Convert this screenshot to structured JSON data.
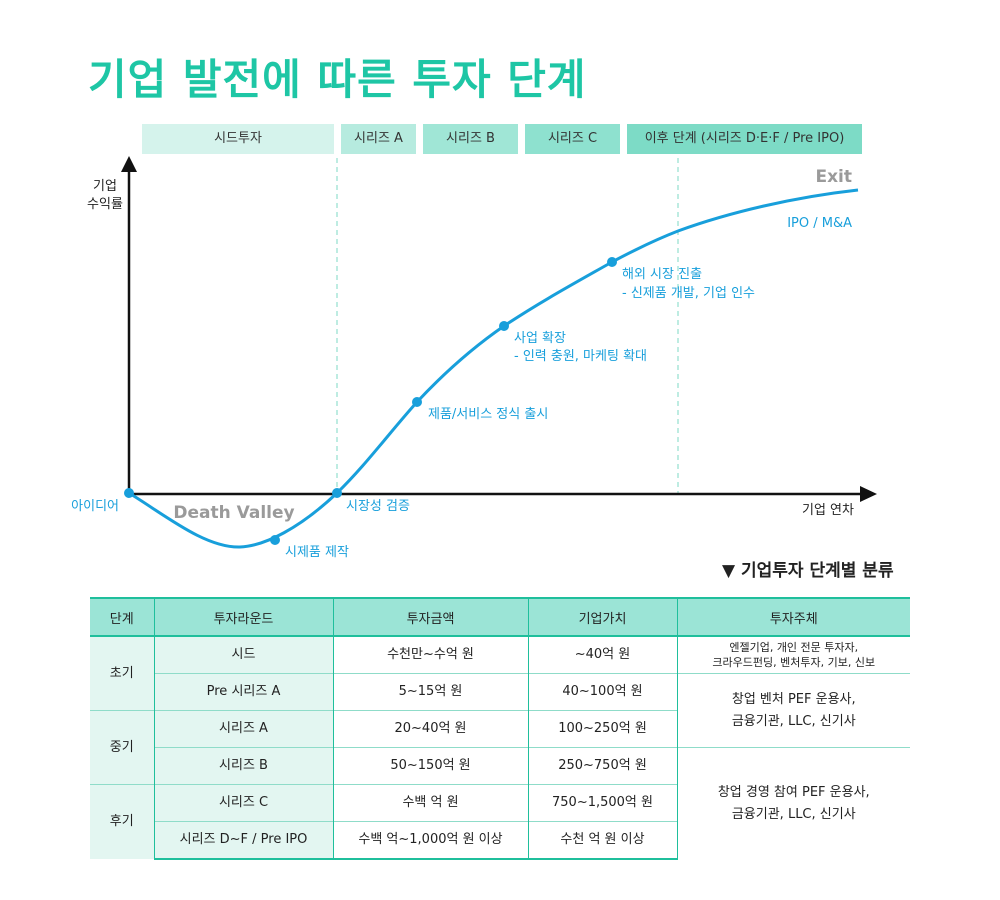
{
  "title": "기업 발전에 따른 투자 단계",
  "phases": [
    "시드투자",
    "시리즈 A",
    "시리즈 B",
    "시리즈 C",
    "이후 단계 (시리즈 D·E·F / Pre IPO)"
  ],
  "chart": {
    "y_axis_label_line1": "기업",
    "y_axis_label_line2": "수익률",
    "x_axis_label": "기업 연차",
    "exit_label": "Exit",
    "exit_sub_label": "IPO / M&A",
    "death_valley_label": "Death Valley",
    "milestones": [
      {
        "name": "idea",
        "label": "아이디어"
      },
      {
        "name": "prototype",
        "label": "시제품 제작"
      },
      {
        "name": "market-validation",
        "label": "시장성 검증"
      },
      {
        "name": "launch",
        "label": "제품/서비스 정식 출시"
      },
      {
        "name": "expansion",
        "label": "사업 확장",
        "sub": "- 인력 충원, 마케팅 확대"
      },
      {
        "name": "overseas",
        "label": "해외 시장 진출",
        "sub": "- 신제품 개발, 기업 인수"
      }
    ],
    "colors": {
      "curve": "#189fdb",
      "accent": "#1ec6a5",
      "axis": "#111111",
      "divider": "#a8e6d8"
    }
  },
  "table": {
    "section_title": "▼ 기업투자 단계별 분류",
    "headers": [
      "단계",
      "투자라운드",
      "투자금액",
      "기업가치",
      "투자주체"
    ],
    "stages": [
      "초기",
      "중기",
      "후기"
    ],
    "rows": [
      {
        "round": "시드",
        "amount": "수천만~수억 원",
        "value": "~40억 원"
      },
      {
        "round": "Pre 시리즈 A",
        "amount": "5~15억 원",
        "value": "40~100억 원"
      },
      {
        "round": "시리즈 A",
        "amount": "20~40억 원",
        "value": "100~250억 원"
      },
      {
        "round": "시리즈 B",
        "amount": "50~150억 원",
        "value": "250~750억 원"
      },
      {
        "round": "시리즈 C",
        "amount": "수백 억 원",
        "value": "750~1,500억 원"
      },
      {
        "round": "시리즈 D~F / Pre IPO",
        "amount": "수백 억~1,000억 원 이상",
        "value": "수천 억 원 이상"
      }
    ],
    "investors": [
      "엔젤기업, 개인 전문 투자자,\n크라우드펀딩, 벤처투자, 기보, 신보",
      "창업 벤처 PEF 운용사,\n금융기관, LLC, 신기사",
      "창업 경영 참여 PEF 운용사,\n금융기관, LLC, 신기사"
    ]
  }
}
